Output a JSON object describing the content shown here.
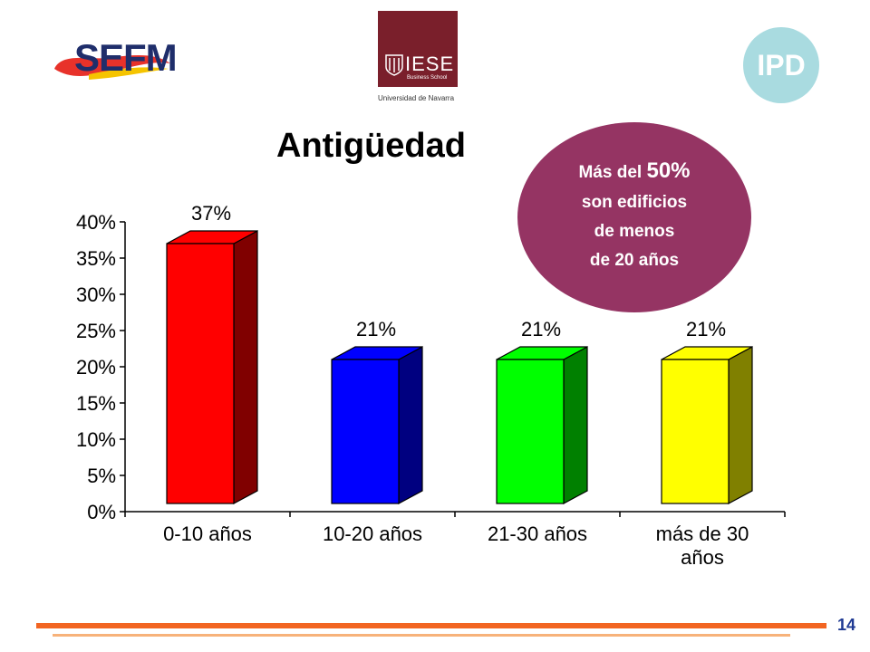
{
  "logos": {
    "sefm": "SEFM",
    "iese": {
      "name": "IESE",
      "sub": "Business School",
      "university": "Universidad de Navarra"
    },
    "ipd": "IPD"
  },
  "title": "Antigüedad",
  "callout": {
    "color": "#953463",
    "line1_prefix": "Más del ",
    "line1_big": "50%",
    "line2": "son edificios",
    "line3": "de menos",
    "line4": "de 20 años"
  },
  "chart_data": {
    "type": "bar",
    "three_d": true,
    "categories": [
      [
        "0-10 años"
      ],
      [
        "10-20 años"
      ],
      [
        "21-30 años"
      ],
      [
        "más de 30",
        "años"
      ]
    ],
    "values": [
      37,
      21,
      21,
      21
    ],
    "data_labels": [
      "37%",
      "21%",
      "21%",
      "21%"
    ],
    "colors": [
      "#ff0000",
      "#0000ff",
      "#00ff00",
      "#ffff00"
    ],
    "side_colors": [
      "#800000",
      "#000080",
      "#008000",
      "#808000"
    ],
    "yticks": [
      "0%",
      "5%",
      "10%",
      "15%",
      "20%",
      "25%",
      "30%",
      "35%",
      "40%"
    ],
    "ylim": [
      0,
      40
    ],
    "grid": false,
    "legend": "none",
    "title": "",
    "xlabel": "",
    "ylabel": ""
  },
  "footer": {
    "page_number": "14"
  }
}
